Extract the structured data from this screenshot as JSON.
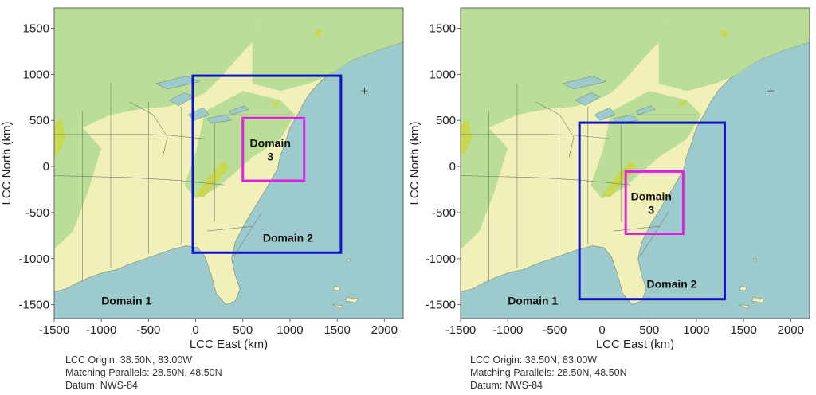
{
  "axes": {
    "x_label": "LCC East (km)",
    "y_label": "LCC North (km)",
    "x_ticks": [
      "-1500",
      "-1000",
      "-500",
      "0",
      "500",
      "1000",
      "1500",
      "2000"
    ],
    "y_ticks": [
      "1500",
      "1000",
      "500",
      "0",
      "-500",
      "-1000",
      "-1500"
    ],
    "xlim": [
      -1500,
      2200
    ],
    "ylim": [
      -1650,
      1720
    ]
  },
  "projection_info": {
    "origin": "LCC Origin: 38.50N, 83.00W",
    "parallels": "Matching Parallels: 28.50N, 48.50N",
    "datum": "Datum: NWS-84"
  },
  "colors": {
    "ocean": "#9dcacc",
    "land": "#f0f0b8",
    "lowland_green": "#a8d88c",
    "mountain": "#c8d850",
    "domain2_box": "#1010d0",
    "domain3_box": "#e020e0"
  },
  "panels": [
    {
      "domain1_label": "Domain 1",
      "domain2_label": "Domain 2",
      "domain3_label_line1": "Domain",
      "domain3_label_line2": "3",
      "domain2_extent_km": {
        "x0": -30,
        "x1": 1540,
        "y0": -935,
        "y1": 985
      },
      "domain3_extent_km": {
        "x0": 500,
        "x1": 1150,
        "y0": -155,
        "y1": 525
      }
    },
    {
      "domain1_label": "Domain 1",
      "domain2_label": "Domain 2",
      "domain3_label_line1": "Domain",
      "domain3_label_line2": "3",
      "domain2_extent_km": {
        "x0": -240,
        "x1": 1300,
        "y0": -1440,
        "y1": 475
      },
      "domain3_extent_km": {
        "x0": 250,
        "x1": 860,
        "y0": -730,
        "y1": -55
      }
    }
  ]
}
